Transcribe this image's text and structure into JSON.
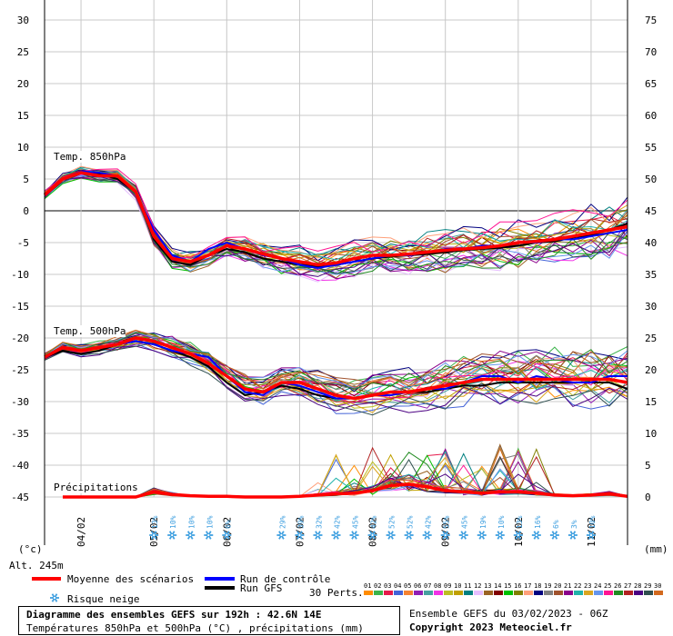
{
  "chart_data": {
    "type": "line",
    "title": "Diagramme des ensembles GEFS sur 192h : 42.6N 14E",
    "subtitle": "Températures 850hPa et 500hPa (°C) , précipitations (mm)",
    "run_info": "Ensemble GEFS du 03/02/2023 - 06Z",
    "copyright": "Copyright 2023 Meteociel.fr",
    "altitude": "Alt. 245m",
    "left_unit": "(°c)",
    "right_unit": "(mm)",
    "left_ticks": [
      "30",
      "25",
      "20",
      "15",
      "10",
      "5",
      "0",
      "-5",
      "-10",
      "-15",
      "-20",
      "-25",
      "-30",
      "-35",
      "-40",
      "-45"
    ],
    "right_ticks": [
      "75",
      "70",
      "65",
      "60",
      "55",
      "50",
      "45",
      "40",
      "35",
      "30",
      "25",
      "20",
      "15",
      "10",
      "5",
      "0"
    ],
    "x_ticks": [
      "04/02",
      "05/02",
      "06/02",
      "07/02",
      "08/02",
      "09/02",
      "10/02",
      "11/02"
    ],
    "panel_labels": {
      "t850": "Temp. 850hPa",
      "t500": "Temp. 500hPa",
      "precip": "Précipitations"
    },
    "ylim": [
      -45,
      30
    ],
    "xlim_hours": [
      0,
      192
    ],
    "t850_mean": [
      [
        0,
        2.5
      ],
      [
        6,
        5
      ],
      [
        12,
        6
      ],
      [
        18,
        5.5
      ],
      [
        24,
        5.5
      ],
      [
        30,
        3
      ],
      [
        36,
        -4
      ],
      [
        42,
        -7.5
      ],
      [
        48,
        -8
      ],
      [
        54,
        -7
      ],
      [
        60,
        -5.5
      ],
      [
        66,
        -6
      ],
      [
        72,
        -6.8
      ],
      [
        78,
        -7.5
      ],
      [
        84,
        -8
      ],
      [
        90,
        -8.5
      ],
      [
        96,
        -8.2
      ],
      [
        102,
        -7.5
      ],
      [
        108,
        -7
      ],
      [
        114,
        -7
      ],
      [
        120,
        -6.8
      ],
      [
        126,
        -6.5
      ],
      [
        132,
        -6.2
      ],
      [
        138,
        -6
      ],
      [
        144,
        -5.8
      ],
      [
        150,
        -5.5
      ],
      [
        156,
        -5
      ],
      [
        162,
        -4.8
      ],
      [
        168,
        -4.5
      ],
      [
        174,
        -4
      ],
      [
        180,
        -3.5
      ],
      [
        186,
        -3
      ],
      [
        192,
        -2.5
      ]
    ],
    "t850_control": [
      [
        0,
        2.5
      ],
      [
        6,
        5
      ],
      [
        12,
        6.2
      ],
      [
        18,
        6
      ],
      [
        24,
        5.5
      ],
      [
        30,
        3
      ],
      [
        36,
        -3
      ],
      [
        42,
        -7
      ],
      [
        48,
        -8
      ],
      [
        54,
        -6
      ],
      [
        60,
        -5
      ],
      [
        66,
        -6
      ],
      [
        72,
        -7
      ],
      [
        78,
        -7.5
      ],
      [
        84,
        -8.5
      ],
      [
        90,
        -9
      ],
      [
        96,
        -8.5
      ],
      [
        102,
        -8
      ],
      [
        108,
        -7.5
      ],
      [
        114,
        -7
      ],
      [
        120,
        -7
      ],
      [
        126,
        -6.5
      ],
      [
        132,
        -6
      ],
      [
        138,
        -6
      ],
      [
        144,
        -5.5
      ],
      [
        150,
        -5.5
      ],
      [
        156,
        -5
      ],
      [
        162,
        -5
      ],
      [
        168,
        -4.5
      ],
      [
        174,
        -4.5
      ],
      [
        180,
        -4
      ],
      [
        186,
        -3.5
      ],
      [
        192,
        -3
      ]
    ],
    "t850_gfs": [
      [
        0,
        2.5
      ],
      [
        6,
        5
      ],
      [
        12,
        6
      ],
      [
        18,
        5.8
      ],
      [
        24,
        5
      ],
      [
        30,
        3
      ],
      [
        36,
        -4.5
      ],
      [
        42,
        -8
      ],
      [
        48,
        -8.5
      ],
      [
        54,
        -7
      ],
      [
        60,
        -6
      ],
      [
        66,
        -6.5
      ],
      [
        72,
        -7.5
      ],
      [
        78,
        -8
      ],
      [
        84,
        -8.5
      ],
      [
        90,
        -8.8
      ],
      [
        96,
        -8.5
      ],
      [
        102,
        -8
      ],
      [
        108,
        -7.5
      ],
      [
        114,
        -7.2
      ],
      [
        120,
        -7
      ],
      [
        126,
        -6.8
      ],
      [
        132,
        -6.5
      ],
      [
        138,
        -6.2
      ],
      [
        144,
        -6
      ],
      [
        150,
        -5.8
      ],
      [
        156,
        -5.5
      ],
      [
        162,
        -5
      ],
      [
        168,
        -4.8
      ],
      [
        174,
        -4.2
      ],
      [
        180,
        -3.8
      ],
      [
        186,
        -3
      ],
      [
        192,
        -2
      ]
    ],
    "t500_mean": [
      [
        0,
        -23
      ],
      [
        6,
        -21.5
      ],
      [
        12,
        -22
      ],
      [
        18,
        -21.5
      ],
      [
        24,
        -21
      ],
      [
        30,
        -20
      ],
      [
        36,
        -20.5
      ],
      [
        42,
        -21.5
      ],
      [
        48,
        -22.5
      ],
      [
        54,
        -24
      ],
      [
        60,
        -26
      ],
      [
        66,
        -28
      ],
      [
        72,
        -28.5
      ],
      [
        78,
        -27
      ],
      [
        84,
        -27
      ],
      [
        90,
        -28
      ],
      [
        96,
        -29
      ],
      [
        102,
        -29.5
      ],
      [
        108,
        -29
      ],
      [
        114,
        -28.5
      ],
      [
        120,
        -28.5
      ],
      [
        126,
        -28
      ],
      [
        132,
        -27.5
      ],
      [
        138,
        -27
      ],
      [
        144,
        -26.5
      ],
      [
        150,
        -26.5
      ],
      [
        156,
        -26.5
      ],
      [
        162,
        -26.5
      ],
      [
        168,
        -26.5
      ],
      [
        174,
        -26.5
      ],
      [
        180,
        -26.5
      ],
      [
        186,
        -26.5
      ],
      [
        192,
        -27
      ]
    ],
    "t500_control": [
      [
        0,
        -23
      ],
      [
        6,
        -21.5
      ],
      [
        12,
        -22
      ],
      [
        18,
        -21.5
      ],
      [
        24,
        -21
      ],
      [
        30,
        -20.5
      ],
      [
        36,
        -21
      ],
      [
        42,
        -22
      ],
      [
        48,
        -22.5
      ],
      [
        54,
        -23
      ],
      [
        60,
        -26
      ],
      [
        66,
        -28.5
      ],
      [
        72,
        -29
      ],
      [
        78,
        -27
      ],
      [
        84,
        -27.5
      ],
      [
        90,
        -28.5
      ],
      [
        96,
        -29.5
      ],
      [
        102,
        -29.5
      ],
      [
        108,
        -29
      ],
      [
        114,
        -29
      ],
      [
        120,
        -28.5
      ],
      [
        126,
        -28
      ],
      [
        132,
        -28
      ],
      [
        138,
        -27
      ],
      [
        144,
        -26
      ],
      [
        150,
        -26
      ],
      [
        156,
        -27
      ],
      [
        162,
        -26
      ],
      [
        168,
        -26.5
      ],
      [
        174,
        -27
      ],
      [
        180,
        -27
      ],
      [
        186,
        -26
      ],
      [
        192,
        -26
      ]
    ],
    "t500_gfs": [
      [
        0,
        -23
      ],
      [
        6,
        -22
      ],
      [
        12,
        -22.5
      ],
      [
        18,
        -22
      ],
      [
        24,
        -21
      ],
      [
        30,
        -20.5
      ],
      [
        36,
        -21
      ],
      [
        42,
        -22
      ],
      [
        48,
        -23
      ],
      [
        54,
        -24.5
      ],
      [
        60,
        -27
      ],
      [
        66,
        -29
      ],
      [
        72,
        -28.5
      ],
      [
        78,
        -27.5
      ],
      [
        84,
        -28
      ],
      [
        90,
        -29
      ],
      [
        96,
        -29.5
      ],
      [
        102,
        -29.5
      ],
      [
        108,
        -29
      ],
      [
        114,
        -28.5
      ],
      [
        120,
        -28.5
      ],
      [
        126,
        -28.5
      ],
      [
        132,
        -28
      ],
      [
        138,
        -27.5
      ],
      [
        144,
        -27.5
      ],
      [
        150,
        -27
      ],
      [
        156,
        -27
      ],
      [
        162,
        -27
      ],
      [
        168,
        -27
      ],
      [
        174,
        -27
      ],
      [
        180,
        -27
      ],
      [
        186,
        -27
      ],
      [
        192,
        -28
      ]
    ],
    "precip_mean_mm": [
      [
        6,
        0
      ],
      [
        30,
        0
      ],
      [
        36,
        0.8
      ],
      [
        42,
        0.4
      ],
      [
        48,
        0.2
      ],
      [
        54,
        0.1
      ],
      [
        60,
        0.1
      ],
      [
        66,
        0
      ],
      [
        72,
        0
      ],
      [
        78,
        0
      ],
      [
        84,
        0.1
      ],
      [
        90,
        0.3
      ],
      [
        96,
        0.5
      ],
      [
        102,
        0.6
      ],
      [
        108,
        1
      ],
      [
        114,
        1.8
      ],
      [
        120,
        2
      ],
      [
        126,
        1.6
      ],
      [
        132,
        1
      ],
      [
        138,
        0.8
      ],
      [
        144,
        0.6
      ],
      [
        150,
        0.8
      ],
      [
        156,
        0.8
      ],
      [
        162,
        0.6
      ],
      [
        168,
        0.3
      ],
      [
        174,
        0.2
      ],
      [
        180,
        0.3
      ],
      [
        186,
        0.5
      ],
      [
        192,
        0.1
      ]
    ],
    "snow_risk": [
      {
        "h": 36,
        "pct": "13%"
      },
      {
        "h": 42,
        "pct": "10%"
      },
      {
        "h": 48,
        "pct": "10%"
      },
      {
        "h": 54,
        "pct": "10%"
      },
      {
        "h": 60,
        "pct": "6%"
      },
      {
        "h": 78,
        "pct": "29%"
      },
      {
        "h": 84,
        "pct": "39%"
      },
      {
        "h": 90,
        "pct": "32%"
      },
      {
        "h": 96,
        "pct": "42%"
      },
      {
        "h": 102,
        "pct": "45%"
      },
      {
        "h": 108,
        "pct": "42%"
      },
      {
        "h": 114,
        "pct": "52%"
      },
      {
        "h": 120,
        "pct": "52%"
      },
      {
        "h": 126,
        "pct": "42%"
      },
      {
        "h": 132,
        "pct": "55%"
      },
      {
        "h": 138,
        "pct": "45%"
      },
      {
        "h": 144,
        "pct": "19%"
      },
      {
        "h": 150,
        "pct": "10%"
      },
      {
        "h": 156,
        "pct": "13%"
      },
      {
        "h": 162,
        "pct": "16%"
      },
      {
        "h": 168,
        "pct": "6%"
      },
      {
        "h": 174,
        "pct": "3%"
      },
      {
        "h": 180,
        "pct": "10%"
      }
    ],
    "legend": {
      "mean": "Moyenne des scénarios",
      "control": "Run de contrôle",
      "gfs": "Run GFS",
      "snow": "Risque neige",
      "perts_label": "30 Perts.",
      "perts": [
        "01",
        "02",
        "03",
        "04",
        "05",
        "06",
        "07",
        "08",
        "09",
        "10",
        "11",
        "12",
        "13",
        "14",
        "15",
        "16",
        "17",
        "18",
        "19",
        "20",
        "21",
        "22",
        "23",
        "24",
        "25",
        "26",
        "27",
        "28",
        "29",
        "30"
      ],
      "pert_colors": [
        "#ff8c00",
        "#3cb44b",
        "#e6194b",
        "#4363d8",
        "#f58231",
        "#911eb4",
        "#46a0a0",
        "#f032e6",
        "#bcbd22",
        "#c0a000",
        "#008080",
        "#e6beff",
        "#9a6324",
        "#800000",
        "#00c000",
        "#808000",
        "#ffa07a",
        "#000080",
        "#808080",
        "#a0522d",
        "#8b008b",
        "#20b2aa",
        "#daa520",
        "#6495ed",
        "#ff1493",
        "#228b22",
        "#b22222",
        "#4b0082",
        "#2f4f4f",
        "#d2691e"
      ]
    },
    "colors": {
      "mean": "#ff0000",
      "control": "#0000ff",
      "gfs": "#000000",
      "zero_line": "#808080",
      "snow": "#40a0e0"
    }
  }
}
